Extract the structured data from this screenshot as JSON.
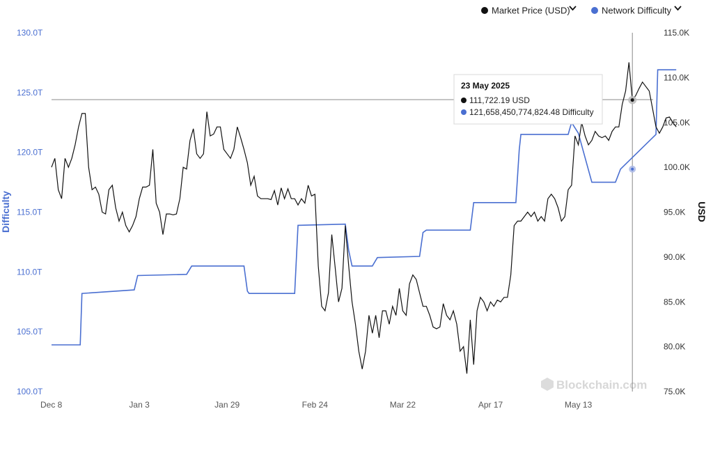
{
  "chart_data": {
    "type": "line",
    "title": "",
    "watermark": "Blockchain.com",
    "xlabel": "",
    "x_ticks": [
      "Dec 8",
      "Jan 3",
      "Jan 29",
      "Feb 24",
      "Mar 22",
      "Apr 17",
      "May 13"
    ],
    "y_left": {
      "label": "Difficulty",
      "ticks": [
        "100.0T",
        "105.0T",
        "110.0T",
        "115.0T",
        "120.0T",
        "125.0T",
        "130.0T"
      ],
      "range": [
        100,
        130
      ],
      "unit": "T",
      "color": "#4a6fd1"
    },
    "y_right": {
      "label": "USD",
      "ticks": [
        "75.0K",
        "80.0K",
        "85.0K",
        "90.0K",
        "95.0K",
        "100.0K",
        "105.0K",
        "110.0K",
        "115.0K"
      ],
      "range": [
        75,
        115
      ],
      "unit": "K"
    },
    "legend": {
      "placement": "top-right",
      "items": [
        {
          "label": "Market Price (USD)",
          "color": "#111111",
          "chevron": "chevron-down-icon"
        },
        {
          "label": "Network Difficulty",
          "color": "#4a6fd1",
          "chevron": "chevron-down-icon"
        }
      ]
    },
    "tooltip": {
      "title": "23 May 2025",
      "price_text": "111,722.19 USD",
      "difficulty_text": "121,658,450,774,824.48 Difficulty"
    },
    "series": [
      {
        "name": "Network Difficulty",
        "axis": "left",
        "color": "#4a6fd1",
        "x_day": [
          0,
          8.5,
          9.0,
          24.5,
          25.5,
          40.0,
          41.5,
          57.0,
          58.0,
          58.5,
          72.0,
          73.0,
          87.0,
          88.0,
          89.0,
          95.0,
          96.5,
          109.0,
          110.0,
          111.0,
          124.0,
          125.0,
          137.5,
          138.5,
          139.0,
          153.0,
          154.0,
          156.0,
          160.0,
          167.0,
          168.5,
          179.0,
          179.5,
          185.0
        ],
        "values": [
          103.9,
          103.9,
          108.2,
          108.5,
          109.7,
          109.8,
          110.5,
          110.5,
          108.4,
          108.2,
          108.2,
          113.9,
          114.0,
          111.8,
          110.5,
          110.5,
          111.2,
          111.3,
          113.3,
          113.5,
          113.5,
          115.8,
          115.8,
          120.2,
          121.5,
          121.5,
          122.5,
          121.6,
          117.5,
          117.5,
          118.6,
          121.5,
          126.9,
          126.9
        ]
      },
      {
        "name": "Market Price (USD)",
        "axis": "right",
        "color": "#111111",
        "x_day": [
          0,
          1,
          2,
          3,
          4,
          5,
          6,
          7,
          8,
          9,
          10,
          11,
          12,
          13,
          14,
          15,
          16,
          17,
          18,
          19,
          20,
          21,
          22,
          23,
          24,
          25,
          26,
          27,
          28,
          29,
          30,
          31,
          32,
          33,
          34,
          35,
          36,
          37,
          38,
          39,
          40,
          41,
          42,
          43,
          44,
          45,
          46,
          47,
          48,
          49,
          50,
          51,
          52,
          53,
          54,
          55,
          56,
          57,
          58,
          59,
          60,
          61,
          62,
          63,
          64,
          65,
          66,
          67,
          68,
          69,
          70,
          71,
          72,
          73,
          74,
          75,
          76,
          77,
          78,
          79,
          80,
          81,
          82,
          83,
          84,
          85,
          86,
          87,
          88,
          89,
          90,
          91,
          92,
          93,
          94,
          95,
          96,
          97,
          98,
          99,
          100,
          101,
          102,
          103,
          104,
          105,
          106,
          107,
          108,
          109,
          110,
          111,
          112,
          113,
          114,
          115,
          116,
          117,
          118,
          119,
          120,
          121,
          122,
          123,
          124,
          125,
          126,
          127,
          128,
          129,
          130,
          131,
          132,
          133,
          134,
          135,
          136,
          137,
          138,
          139,
          140,
          141,
          142,
          143,
          144,
          145,
          146,
          147,
          148,
          149,
          150,
          151,
          152,
          153,
          154,
          155,
          156,
          157,
          158,
          159,
          160,
          161,
          162,
          163,
          164,
          165,
          166,
          167,
          168,
          169,
          170,
          171,
          172,
          173,
          174,
          175,
          176,
          177,
          178,
          179,
          180,
          181,
          182,
          183,
          184,
          185
        ],
        "values": [
          100.0,
          101.0,
          97.5,
          96.5,
          101.0,
          100.0,
          101.0,
          102.5,
          104.5,
          106.0,
          106.0,
          100.0,
          97.5,
          97.8,
          97.0,
          95.0,
          94.8,
          97.5,
          98.0,
          95.5,
          94.0,
          95.0,
          93.5,
          92.8,
          93.5,
          94.5,
          96.5,
          97.8,
          97.8,
          98.0,
          102.0,
          96.0,
          95.0,
          92.5,
          94.8,
          94.8,
          94.7,
          94.8,
          96.5,
          100.0,
          99.8,
          103.0,
          104.3,
          101.5,
          101.0,
          101.5,
          106.2,
          103.5,
          103.7,
          104.5,
          104.5,
          102.0,
          101.5,
          101.0,
          102.0,
          104.5,
          103.3,
          102.0,
          100.5,
          98.0,
          99.0,
          96.8,
          96.5,
          96.5,
          96.5,
          96.4,
          97.4,
          95.8,
          97.7,
          96.5,
          97.6,
          96.5,
          96.5,
          95.8,
          96.5,
          96.0,
          98.0,
          96.8,
          97.0,
          89.0,
          84.5,
          84.0,
          86.0,
          92.5,
          88.8,
          85.0,
          86.5,
          93.5,
          89.0,
          85.0,
          82.5,
          79.5,
          77.5,
          79.5,
          83.5,
          81.5,
          83.5,
          81.0,
          84.0,
          84.0,
          82.5,
          84.5,
          83.5,
          86.5,
          84.0,
          83.5,
          87.0,
          88.0,
          87.5,
          86.0,
          84.5,
          84.5,
          83.5,
          82.2,
          82.0,
          82.2,
          84.8,
          83.5,
          83.0,
          84.0,
          82.5,
          79.5,
          80.0,
          77.0,
          83.0,
          78.0,
          84.0,
          85.5,
          85.0,
          84.0,
          85.0,
          84.5,
          85.2,
          85.0,
          85.5,
          85.5,
          88.0,
          93.5,
          94.0,
          94.0,
          94.5,
          95.0,
          94.5,
          95.0,
          94.0,
          94.5,
          94.0,
          96.5,
          97.0,
          96.5,
          95.5,
          94.0,
          94.5,
          97.5,
          98.0,
          103.5,
          102.5,
          105.0,
          103.5,
          102.5,
          103.0,
          104.0,
          103.5,
          103.3,
          103.5,
          103.0,
          104.0,
          104.5,
          104.5,
          107.0,
          108.5,
          111.7,
          107.5,
          108.0,
          108.8,
          109.5,
          109.0,
          108.5,
          106.5,
          104.5,
          103.8,
          104.5,
          105.5,
          105.6,
          105.0,
          104.5
        ]
      }
    ],
    "crosshair_day": 172,
    "grid": false
  }
}
